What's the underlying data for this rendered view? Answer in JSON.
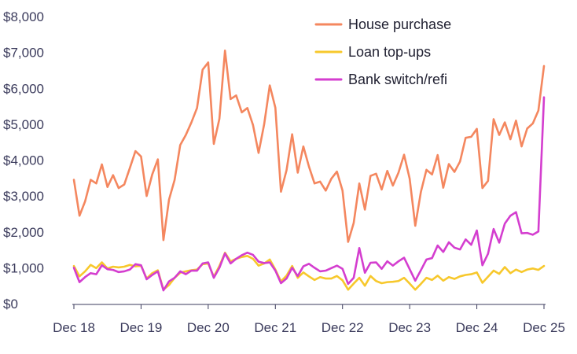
{
  "chart_data": {
    "type": "line",
    "title": "",
    "xlabel": "",
    "ylabel": "",
    "ylim": [
      0,
      8000
    ],
    "yticks": [
      0,
      1000,
      2000,
      3000,
      4000,
      5000,
      6000,
      7000,
      8000
    ],
    "ytick_labels": [
      "$0",
      "$1,000",
      "$2,000",
      "$3,000",
      "$4,000",
      "$5,000",
      "$6,000",
      "$7,000",
      "$8,000"
    ],
    "xtick_labels": [
      "Dec 18",
      "Dec 19",
      "Dec 20",
      "Dec 21",
      "Dec 22",
      "Dec 23",
      "Dec 24",
      "Dec 25"
    ],
    "xtick_positions": [
      0,
      12,
      24,
      36,
      48,
      60,
      72,
      84
    ],
    "grid": false,
    "legend_position": "top-right",
    "x": [
      0,
      1,
      2,
      3,
      4,
      5,
      6,
      7,
      8,
      9,
      10,
      11,
      12,
      13,
      14,
      15,
      16,
      17,
      18,
      19,
      20,
      21,
      22,
      23,
      24,
      25,
      26,
      27,
      28,
      29,
      30,
      31,
      32,
      33,
      34,
      35,
      36,
      37,
      38,
      39,
      40,
      41,
      42,
      43,
      44,
      45,
      46,
      47,
      48,
      49,
      50,
      51,
      52,
      53,
      54,
      55,
      56,
      57,
      58,
      59,
      60,
      61,
      62,
      63,
      64,
      65,
      66,
      67,
      68,
      69,
      70,
      71,
      72,
      73,
      74,
      75,
      76,
      77,
      78,
      79,
      80,
      81,
      82,
      83,
      84
    ],
    "series": [
      {
        "name": "House purchase",
        "color": "#f4875f",
        "values": [
          3450,
          2450,
          2850,
          3450,
          3350,
          3880,
          3250,
          3580,
          3220,
          3320,
          3780,
          4250,
          4100,
          3000,
          3600,
          4020,
          1770,
          2900,
          3450,
          4420,
          4700,
          5050,
          5450,
          6520,
          6720,
          4450,
          5150,
          7050,
          5700,
          5800,
          5330,
          5450,
          4980,
          4200,
          5000,
          6080,
          5460,
          3120,
          3720,
          4720,
          3650,
          4380,
          3820,
          3350,
          3400,
          3150,
          3480,
          3680,
          3150,
          1720,
          2250,
          3350,
          2620,
          3560,
          3620,
          3180,
          3700,
          3290,
          3650,
          4150,
          3480,
          2170,
          3110,
          3730,
          3600,
          4140,
          3230,
          3890,
          3670,
          3960,
          4620,
          4650,
          4870,
          3220,
          3420,
          5140,
          4700,
          5050,
          4580,
          5100,
          4380,
          4880,
          5020,
          5380,
          6620
        ]
      },
      {
        "name": "Loan top-ups",
        "color": "#f7c82c",
        "values": [
          1050,
          760,
          900,
          1080,
          990,
          1150,
          980,
          1030,
          1010,
          1030,
          1080,
          1040,
          1060,
          700,
          850,
          930,
          390,
          520,
          720,
          860,
          900,
          930,
          950,
          1100,
          1120,
          750,
          1050,
          1420,
          1180,
          1250,
          1300,
          1330,
          1250,
          1060,
          1120,
          1230,
          950,
          620,
          780,
          1050,
          720,
          870,
          760,
          660,
          740,
          700,
          700,
          770,
          650,
          390,
          560,
          720,
          500,
          770,
          630,
          570,
          600,
          610,
          630,
          720,
          560,
          390,
          550,
          720,
          660,
          780,
          640,
          740,
          690,
          760,
          800,
          820,
          870,
          580,
          750,
          920,
          830,
          1020,
          850,
          950,
          880,
          950,
          980,
          940,
          1050
        ]
      },
      {
        "name": "Bank switch/refi",
        "color": "#d43ecf",
        "values": [
          1000,
          600,
          740,
          850,
          820,
          1070,
          960,
          940,
          880,
          900,
          950,
          1100,
          1070,
          680,
          800,
          900,
          370,
          620,
          720,
          900,
          820,
          920,
          920,
          1120,
          1150,
          720,
          1000,
          1400,
          1120,
          1250,
          1350,
          1420,
          1360,
          1170,
          1130,
          1150,
          920,
          570,
          700,
          1000,
          770,
          1040,
          1110,
          1000,
          900,
          920,
          990,
          1060,
          970,
          550,
          720,
          1550,
          860,
          1140,
          1150,
          970,
          1180,
          1060,
          1180,
          1280,
          960,
          640,
          930,
          1230,
          1270,
          1620,
          1440,
          1710,
          1560,
          1510,
          1790,
          1640,
          2040,
          1070,
          1390,
          2080,
          1700,
          2230,
          2450,
          2550,
          1960,
          1970,
          1920,
          2010,
          5750
        ]
      }
    ]
  }
}
